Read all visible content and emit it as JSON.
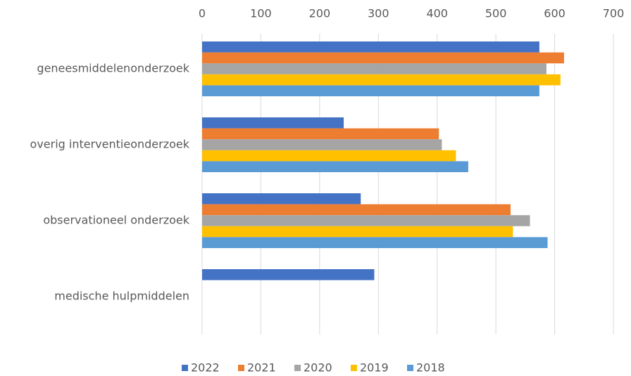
{
  "chart_data": {
    "type": "hbar",
    "categories": [
      "geneesmiddelenonderzoek",
      "overig interventieonderzoek",
      "observationeel onderzoek",
      "medische hulpmiddelen"
    ],
    "series": [
      {
        "name": "2022",
        "color": "#4472c4",
        "values": [
          574,
          241,
          270,
          293
        ]
      },
      {
        "name": "2021",
        "color": "#ed7d31",
        "values": [
          616,
          403,
          525,
          null
        ]
      },
      {
        "name": "2020",
        "color": "#a5a5a5",
        "values": [
          586,
          408,
          558,
          null
        ]
      },
      {
        "name": "2019",
        "color": "#ffc000",
        "values": [
          610,
          432,
          529,
          null
        ]
      },
      {
        "name": "2018",
        "color": "#5b9bd5",
        "values": [
          574,
          453,
          588,
          null
        ]
      }
    ],
    "xlim": [
      0,
      700
    ],
    "xticks": [
      0,
      100,
      200,
      300,
      400,
      500,
      600,
      700
    ],
    "grid": true,
    "legend": "bottom"
  }
}
